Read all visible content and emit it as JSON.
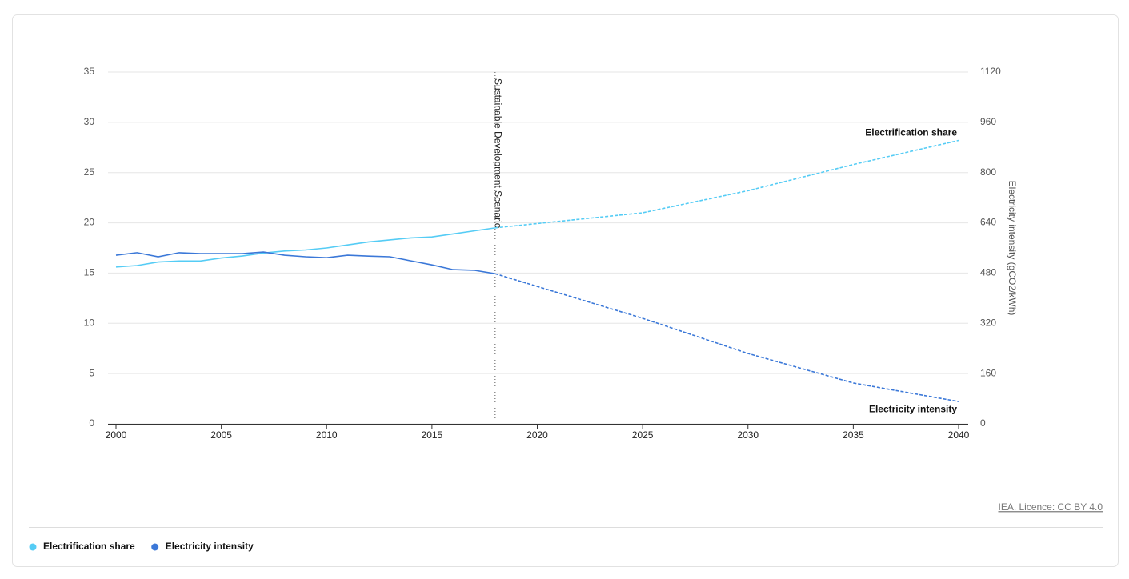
{
  "chart_data": {
    "type": "line",
    "x": [
      2000,
      2001,
      2002,
      2003,
      2004,
      2005,
      2006,
      2007,
      2008,
      2009,
      2010,
      2011,
      2012,
      2013,
      2014,
      2015,
      2016,
      2017,
      2018,
      2025,
      2030,
      2035,
      2040
    ],
    "series": [
      {
        "name": "Electrification share",
        "color": "#55ccf5",
        "axis": "y",
        "values": [
          15.6,
          15.75,
          16.1,
          16.2,
          16.2,
          16.5,
          16.7,
          17.0,
          17.2,
          17.3,
          17.5,
          17.8,
          18.1,
          18.3,
          18.5,
          18.6,
          18.9,
          19.2,
          19.5,
          21.0,
          23.2,
          25.8,
          28.2
        ]
      },
      {
        "name": "Electricity intensity",
        "color": "#3b78d8",
        "axis": "y2",
        "values": [
          537,
          545,
          532,
          545,
          542,
          542,
          542,
          547,
          537,
          532,
          529,
          537,
          534,
          532,
          519,
          506,
          491,
          489,
          478,
          336,
          224,
          130,
          71
        ]
      }
    ],
    "xlim": [
      2000,
      2040
    ],
    "xticks": [
      2000,
      2005,
      2010,
      2015,
      2020,
      2025,
      2030,
      2035,
      2040
    ],
    "ylim": [
      0,
      35
    ],
    "yticks": [
      0,
      5,
      10,
      15,
      20,
      25,
      30,
      35
    ],
    "y2lim": [
      0,
      1120
    ],
    "y2ticks": [
      0,
      160,
      320,
      480,
      640,
      800,
      960,
      1120
    ],
    "y2label": "Electricity intensity (gCO2/kWh)",
    "annotation": {
      "text": "Sustainable Development Scenario",
      "x": 2018
    },
    "grid": true,
    "legend": "bottom-left",
    "source": "IEA. Licence: CC BY 4.0"
  }
}
